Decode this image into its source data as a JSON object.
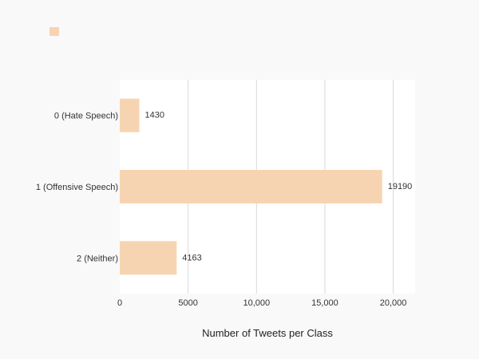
{
  "chart_data": {
    "type": "bar",
    "orientation": "horizontal",
    "categories": [
      "0 (Hate Speech)",
      "1 (Offensive Speech)",
      "2 (Neither)"
    ],
    "values": [
      1430,
      19190,
      4163
    ],
    "data_labels": [
      "1430",
      "19190",
      "4163"
    ],
    "series": [
      {
        "values": [
          1430,
          19190,
          4163
        ]
      }
    ],
    "xlabel": "Number of Tweets per Class",
    "ylabel": "",
    "xlim": [
      0,
      21600
    ],
    "xticks": [
      0,
      5000,
      10000,
      15000,
      20000
    ],
    "xtick_labels": [
      "0",
      "5000",
      "10,000",
      "15,000",
      "20,000"
    ],
    "grid": "vertical",
    "legend": "top-left",
    "bar_color": "#f7d4b1",
    "grid_color": "#d9d9d9",
    "plot_background": "#ffffff",
    "page_background": "#f9f9f9"
  }
}
